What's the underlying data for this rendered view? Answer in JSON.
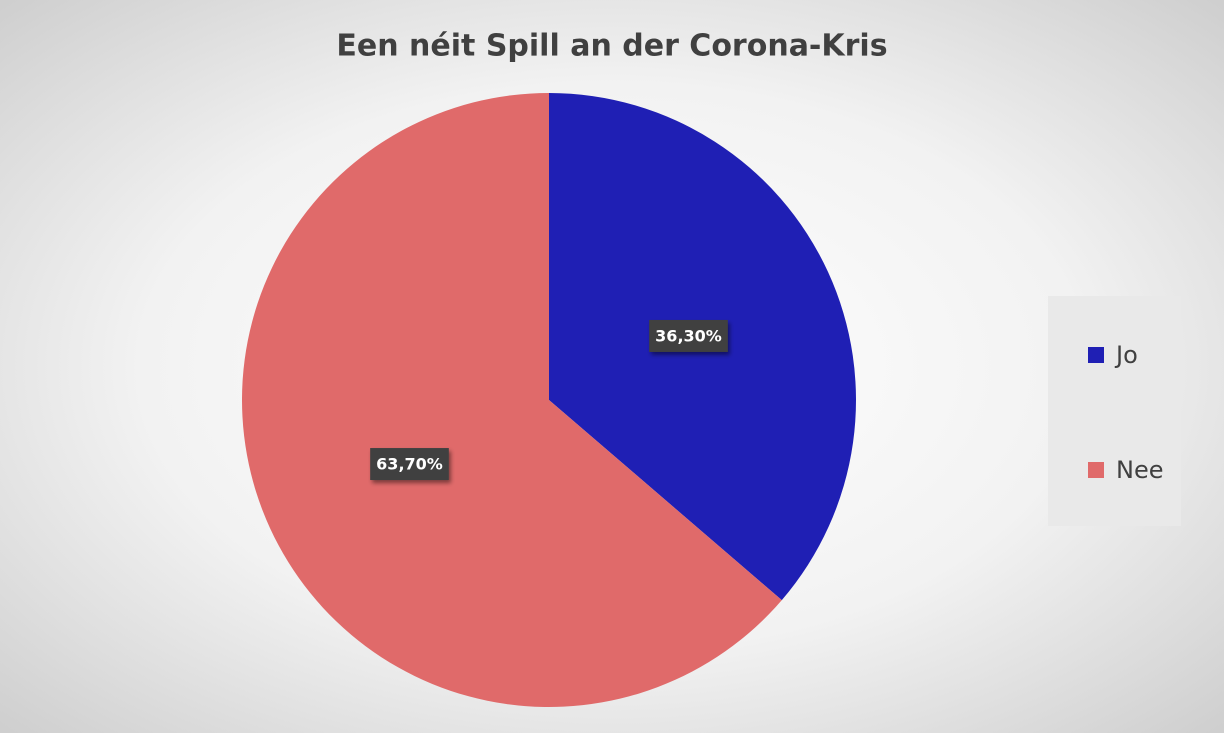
{
  "chart_data": {
    "type": "pie",
    "title": "Een néit Spill an der Corona-Kris",
    "categories": [
      "Jo",
      "Nee"
    ],
    "values": [
      36.3,
      63.7
    ],
    "value_labels": [
      "36,30%",
      "63,70%"
    ],
    "colors": [
      "#1f1fb4",
      "#e06a6a"
    ],
    "legend": "right"
  }
}
